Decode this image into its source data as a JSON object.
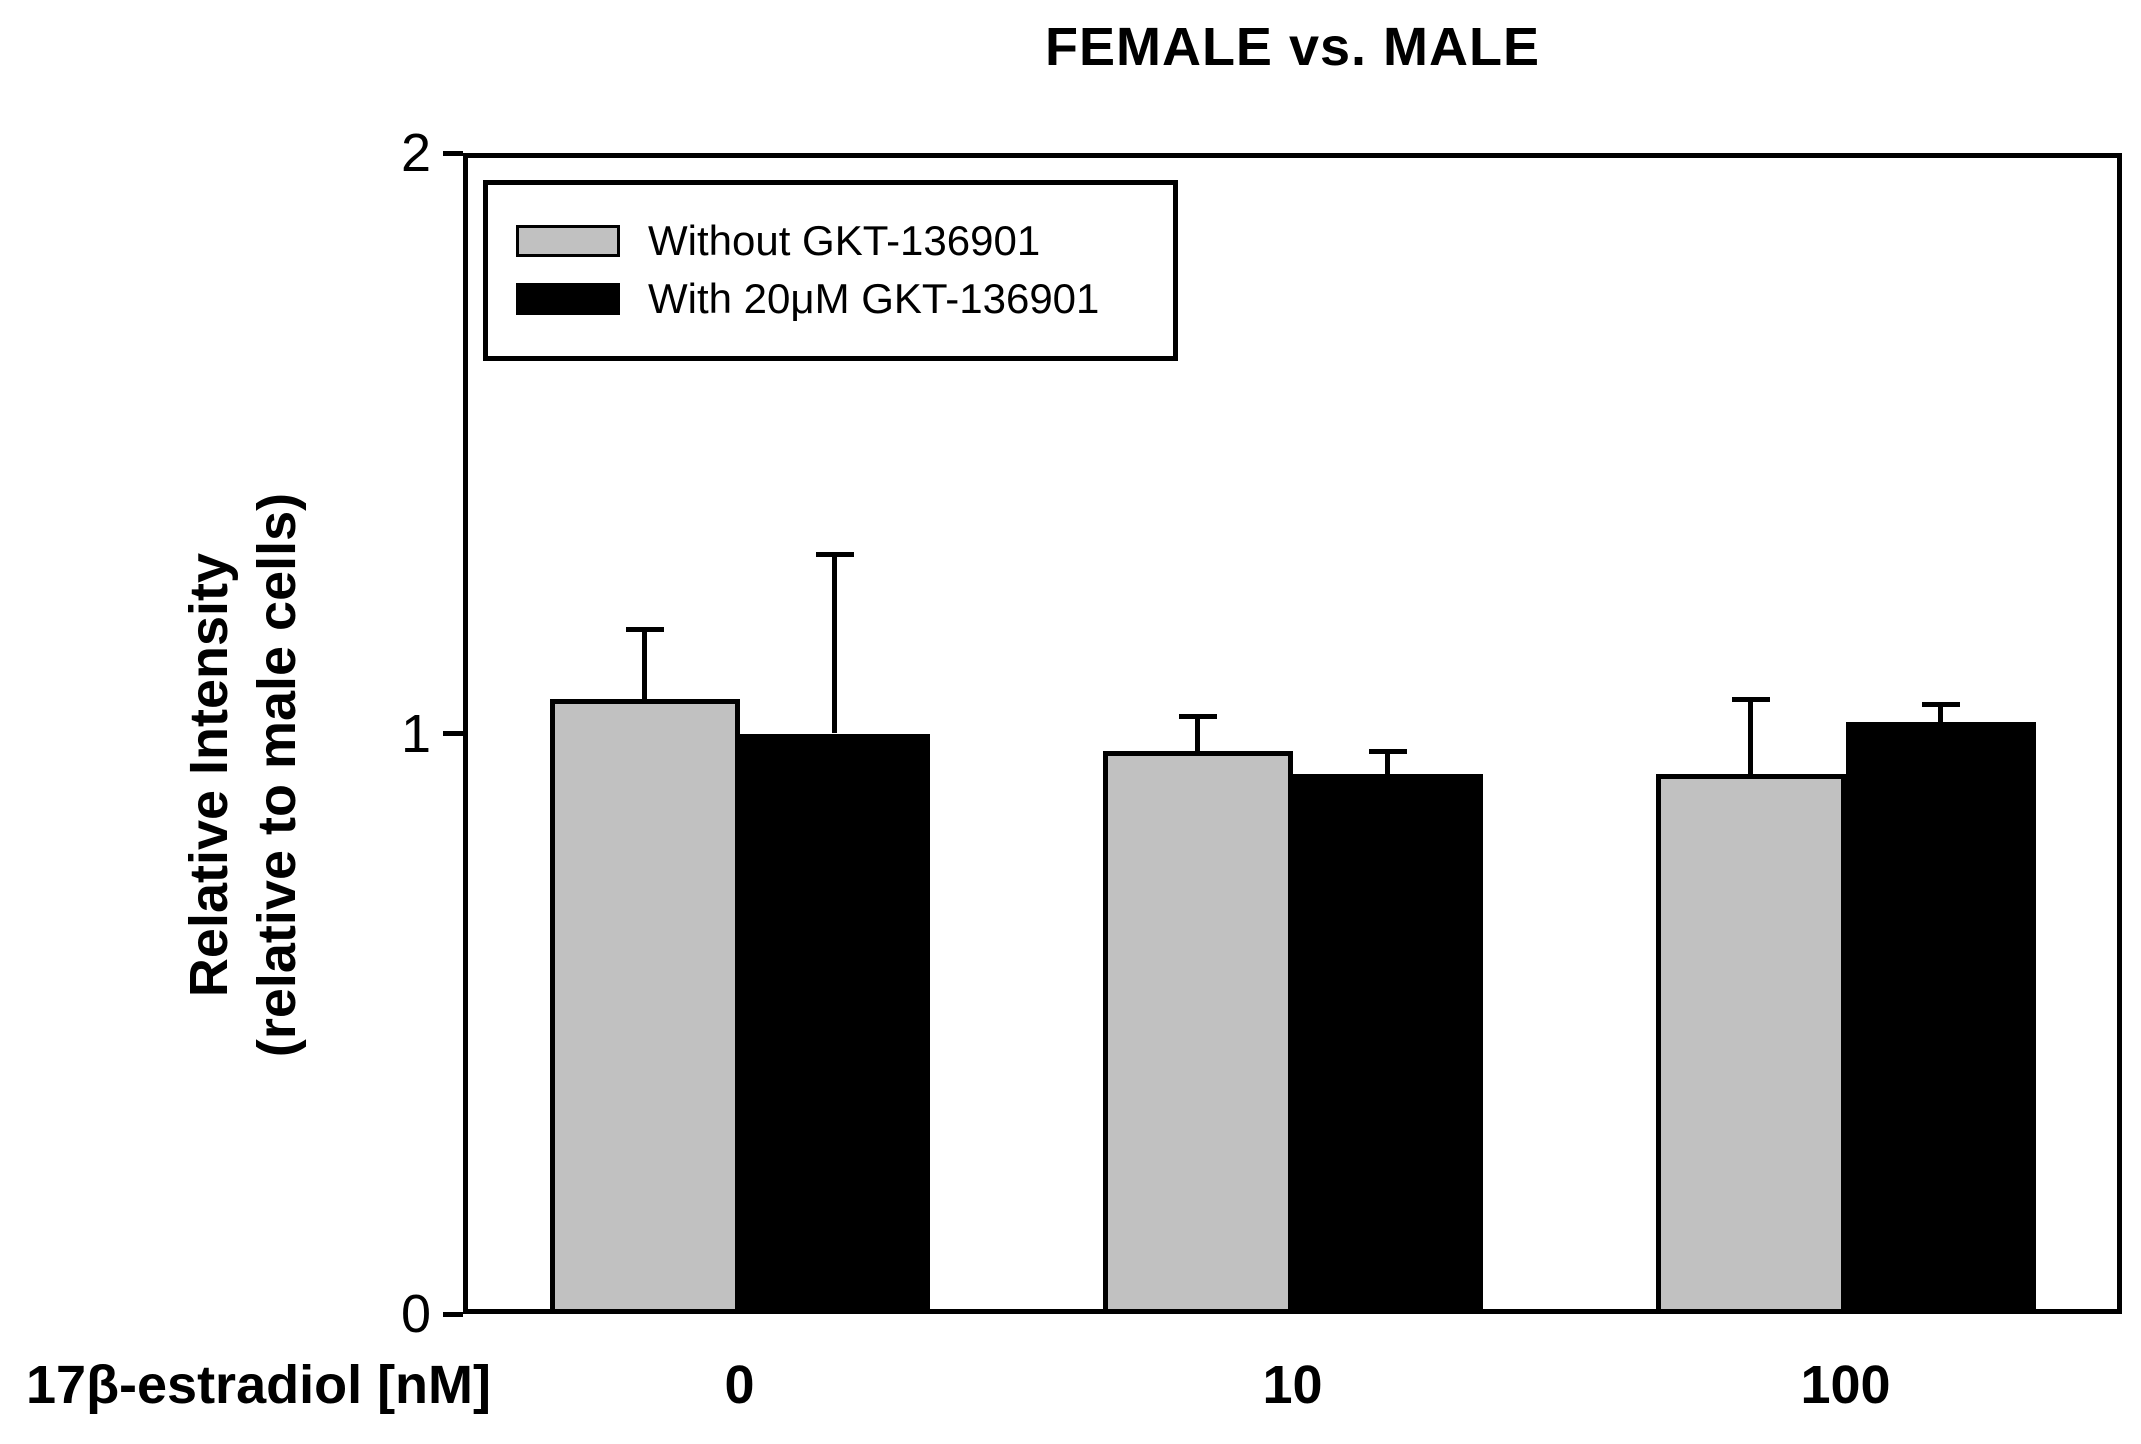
{
  "title": "FEMALE vs. MALE",
  "chart_data": {
    "type": "bar",
    "title": "FEMALE vs. MALE",
    "categories": [
      "0",
      "10",
      "100"
    ],
    "series": [
      {
        "name": "Without GKT-136901",
        "color": "#c1c1c1",
        "values": [
          1.06,
          0.97,
          0.93
        ],
        "errors_up": [
          0.12,
          0.06,
          0.13
        ]
      },
      {
        "name": "With 20μM GKT-136901",
        "color": "#000000",
        "values": [
          1.0,
          0.93,
          1.02
        ],
        "errors_up": [
          0.31,
          0.04,
          0.03
        ]
      }
    ],
    "xlabel": "17β-estradiol [nM]",
    "ylabel_line1": "Relative Intensity",
    "ylabel_line2": "(relative to male cells)",
    "ylim": [
      0,
      2
    ],
    "yticks": [
      0,
      1,
      2
    ],
    "grid": false,
    "legend_position": "upper-left-inside",
    "error_bars": "upper-only",
    "axis_color": "#000000",
    "background_color": "#ffffff"
  }
}
